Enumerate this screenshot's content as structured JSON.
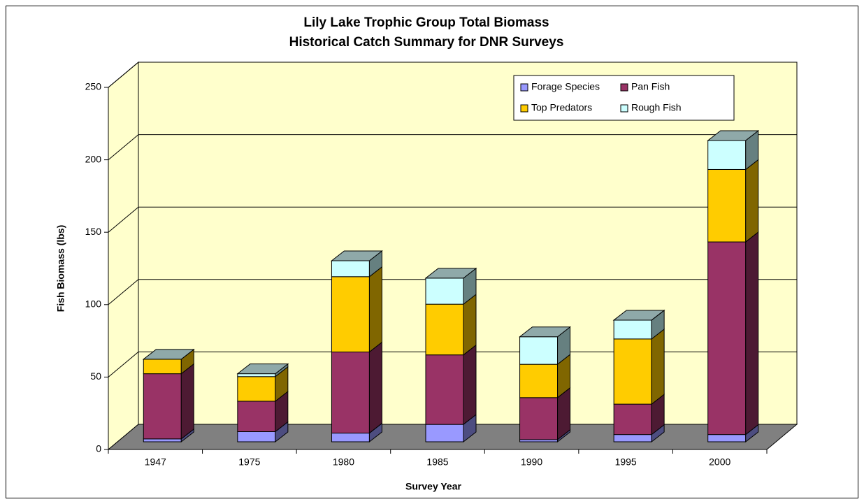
{
  "chart_data": {
    "type": "bar3d_stacked",
    "title": [
      "Lily Lake Trophic Group Total Biomass",
      "Historical Catch Summary for DNR Surveys"
    ],
    "x_label": "Survey Year",
    "y_label": "Fish Biomass (lbs)",
    "categories": [
      "1947",
      "1975",
      "1980",
      "1985",
      "1990",
      "1995",
      "2000"
    ],
    "series": [
      {
        "name": "Forage Species",
        "color": "#9999ff",
        "values": [
          2,
          7,
          6,
          12,
          1.5,
          5,
          5
        ]
      },
      {
        "name": "Pan Fish",
        "color": "#993366",
        "values": [
          45,
          21,
          56,
          48,
          29,
          21,
          133
        ]
      },
      {
        "name": "Top Predators",
        "color": "#ffcc00",
        "values": [
          10,
          17,
          52,
          35,
          23,
          45,
          50
        ]
      },
      {
        "name": "Rough Fish",
        "color": "#ccffff",
        "values": [
          0,
          2,
          11,
          18,
          19,
          13,
          20
        ]
      }
    ],
    "ylim": [
      0,
      250
    ],
    "yticks": [
      0,
      50,
      100,
      150,
      200,
      250
    ],
    "grid": true
  }
}
